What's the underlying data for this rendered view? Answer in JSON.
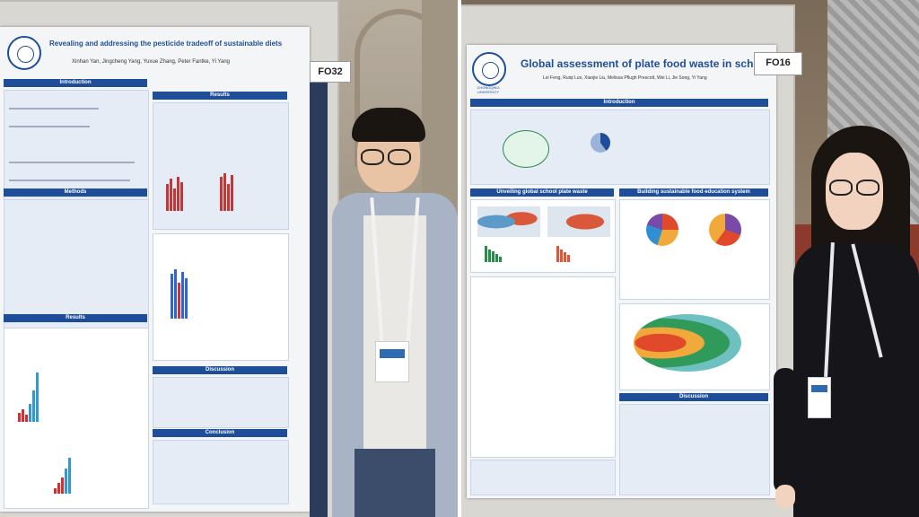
{
  "left_poster": {
    "title": "Revealing and addressing the pesticide tradeoff of sustainable diets",
    "authors": "Xinhan Yan, Jingcheng Yang, Yuxue Zhang, Peter Fantke, Yi Yang",
    "tag": "FO32",
    "sections": [
      "Introduction",
      "Results",
      "Methods",
      "Results",
      "Discussion",
      "Conclusion"
    ]
  },
  "right_poster": {
    "title": "Global assessment of plate food waste in schools",
    "authors": "Lei Feng, Ruiqi Luo, Xiaojie Liu, Melissa Pflugh Prescott, Wei Li, Jie Song, Yi Yang",
    "university": "CHONGQING UNIVERSITY",
    "tag": "FO16",
    "sections": [
      "Introduction",
      "Unveiling global school plate waste",
      "Building sustainable food education system",
      "Discussion"
    ]
  },
  "colors": {
    "poster_blue": "#1f4e99",
    "poster_bg": "#f4f5f7"
  }
}
